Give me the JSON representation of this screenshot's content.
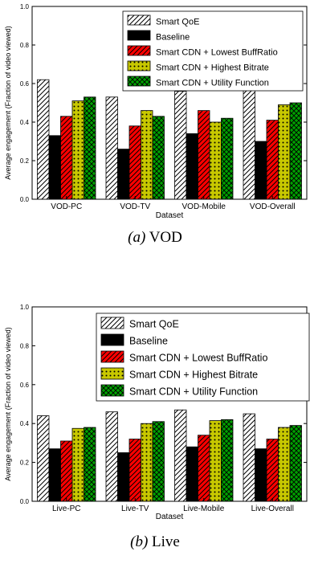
{
  "captions": [
    {
      "label": "(a)",
      "text": "VOD"
    },
    {
      "label": "(b)",
      "text": "Live"
    }
  ],
  "patterns": {
    "Smart QoE": {
      "fill": "#ffffff",
      "hatch": "diag",
      "hatch_color": "#000000"
    },
    "Baseline": {
      "fill": "#000000",
      "hatch": "none",
      "hatch_color": "#000000"
    },
    "Smart CDN + Lowest BuffRatio": {
      "fill": "#ff0000",
      "hatch": "diag",
      "hatch_color": "#000000"
    },
    "Smart CDN + Highest Bitrate": {
      "fill": "#c8c800",
      "hatch": "dots",
      "hatch_color": "#000000"
    },
    "Smart CDN + Utility Function": {
      "fill": "#00a000",
      "hatch": "cross",
      "hatch_color": "#000000"
    }
  },
  "chart_data": [
    {
      "type": "bar",
      "title": "",
      "xlabel": "Dataset",
      "ylabel": "Average engagement (Fraction of video viewed)",
      "ylim": [
        0,
        1.0
      ],
      "yticks": [
        "0.0",
        "0.2",
        "0.4",
        "0.6",
        "0.8",
        "1.0"
      ],
      "categories": [
        "VOD-PC",
        "VOD-TV",
        "VOD-Mobile",
        "VOD-Overall"
      ],
      "legend_position": "top-right",
      "series": [
        {
          "name": "Smart QoE",
          "values": [
            0.62,
            0.53,
            0.56,
            0.59
          ]
        },
        {
          "name": "Baseline",
          "values": [
            0.33,
            0.26,
            0.34,
            0.3
          ]
        },
        {
          "name": "Smart CDN + Lowest BuffRatio",
          "values": [
            0.43,
            0.38,
            0.46,
            0.41
          ]
        },
        {
          "name": "Smart CDN + Highest Bitrate",
          "values": [
            0.51,
            0.46,
            0.4,
            0.49
          ]
        },
        {
          "name": "Smart CDN + Utility Function",
          "values": [
            0.53,
            0.43,
            0.42,
            0.5
          ]
        }
      ]
    },
    {
      "type": "bar",
      "title": "",
      "xlabel": "Dataset",
      "ylabel": "Average engagement (Fraction of video viewed)",
      "ylim": [
        0,
        1.0
      ],
      "yticks": [
        "0.0",
        "0.2",
        "0.4",
        "0.6",
        "0.8",
        "1.0"
      ],
      "categories": [
        "Live-PC",
        "Live-TV",
        "Live-Mobile",
        "Live-Overall"
      ],
      "legend_position": "top-right",
      "series": [
        {
          "name": "Smart QoE",
          "values": [
            0.44,
            0.46,
            0.47,
            0.45
          ]
        },
        {
          "name": "Baseline",
          "values": [
            0.27,
            0.25,
            0.28,
            0.27
          ]
        },
        {
          "name": "Smart CDN + Lowest BuffRatio",
          "values": [
            0.31,
            0.32,
            0.34,
            0.32
          ]
        },
        {
          "name": "Smart CDN + Highest Bitrate",
          "values": [
            0.375,
            0.4,
            0.415,
            0.38
          ]
        },
        {
          "name": "Smart CDN + Utility Function",
          "values": [
            0.38,
            0.41,
            0.42,
            0.39
          ]
        }
      ]
    }
  ]
}
